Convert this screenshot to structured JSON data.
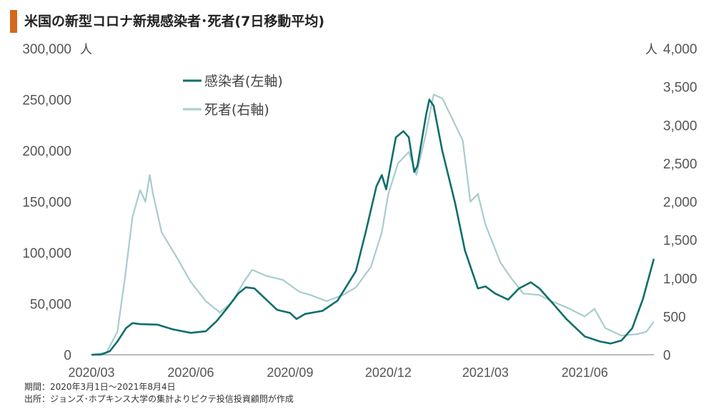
{
  "title": "米国の新型コロナ新規感染者･死者(7日移動平均)",
  "colors": {
    "accent": "#d2691e",
    "cases": "#0f6e6b",
    "deaths": "#a9cccc",
    "axis": "#777777"
  },
  "notes": {
    "period": "期間：2020年3月1日～2021年8月4日",
    "source": "出所：ジョンズ･ホプキンス大学の集計よりピクテ投信投資顧問が作成"
  },
  "chart_data": {
    "type": "line",
    "x_ticks": [
      "2020/03",
      "2020/06",
      "2020/09",
      "2020/12",
      "2021/03",
      "2021/06"
    ],
    "x_range": [
      "2020-03-01",
      "2021-08-04"
    ],
    "y_left": {
      "unit": "人",
      "range": [
        0,
        300000
      ],
      "ticks": [
        0,
        50000,
        100000,
        150000,
        200000,
        250000,
        300000
      ],
      "tick_labels": [
        "0",
        "50,000",
        "100,000",
        "150,000",
        "200,000",
        "250,000",
        "300,000"
      ]
    },
    "y_right": {
      "unit": "人",
      "range": [
        0,
        4000
      ],
      "ticks": [
        0,
        500,
        1000,
        1500,
        2000,
        2500,
        3000,
        3500,
        4000
      ],
      "tick_labels": [
        "0",
        "500",
        "1,000",
        "1,500",
        "2,000",
        "2,500",
        "3,000",
        "3,500",
        "4,000"
      ]
    },
    "legend_position": "top-center",
    "grid": false,
    "series": [
      {
        "name": "感染者(左軸)",
        "axis": "left",
        "points": [
          [
            "2020-03-01",
            0
          ],
          [
            "2020-03-10",
            200
          ],
          [
            "2020-03-18",
            3500
          ],
          [
            "2020-03-25",
            13000
          ],
          [
            "2020-04-02",
            26000
          ],
          [
            "2020-04-08",
            31000
          ],
          [
            "2020-04-15",
            30000
          ],
          [
            "2020-05-01",
            29500
          ],
          [
            "2020-05-15",
            25000
          ],
          [
            "2020-06-01",
            21500
          ],
          [
            "2020-06-15",
            23000
          ],
          [
            "2020-06-25",
            33000
          ],
          [
            "2020-07-05",
            46000
          ],
          [
            "2020-07-15",
            60000
          ],
          [
            "2020-07-22",
            66000
          ],
          [
            "2020-07-30",
            65000
          ],
          [
            "2020-08-10",
            54000
          ],
          [
            "2020-08-20",
            44000
          ],
          [
            "2020-09-01",
            41000
          ],
          [
            "2020-09-07",
            35000
          ],
          [
            "2020-09-15",
            40000
          ],
          [
            "2020-10-01",
            43000
          ],
          [
            "2020-10-15",
            53000
          ],
          [
            "2020-11-01",
            82000
          ],
          [
            "2020-11-10",
            120000
          ],
          [
            "2020-11-20",
            165000
          ],
          [
            "2020-11-25",
            176000
          ],
          [
            "2020-11-29",
            162000
          ],
          [
            "2020-12-08",
            213000
          ],
          [
            "2020-12-15",
            219000
          ],
          [
            "2020-12-20",
            213000
          ],
          [
            "2020-12-25",
            179000
          ],
          [
            "2020-12-28",
            185000
          ],
          [
            "2021-01-05",
            235000
          ],
          [
            "2021-01-08",
            250000
          ],
          [
            "2021-01-12",
            244000
          ],
          [
            "2021-01-20",
            200000
          ],
          [
            "2021-02-01",
            148000
          ],
          [
            "2021-02-10",
            102000
          ],
          [
            "2021-02-22",
            65000
          ],
          [
            "2021-03-01",
            67000
          ],
          [
            "2021-03-10",
            60000
          ],
          [
            "2021-03-22",
            54000
          ],
          [
            "2021-04-01",
            65000
          ],
          [
            "2021-04-12",
            71000
          ],
          [
            "2021-04-20",
            65000
          ],
          [
            "2021-05-01",
            52000
          ],
          [
            "2021-05-15",
            35000
          ],
          [
            "2021-06-01",
            18000
          ],
          [
            "2021-06-15",
            13000
          ],
          [
            "2021-06-25",
            11000
          ],
          [
            "2021-07-05",
            14000
          ],
          [
            "2021-07-15",
            26000
          ],
          [
            "2021-07-25",
            55000
          ],
          [
            "2021-08-04",
            94000
          ]
        ]
      },
      {
        "name": "死者(右軸)",
        "axis": "right",
        "points": [
          [
            "2020-03-01",
            0
          ],
          [
            "2020-03-15",
            30
          ],
          [
            "2020-03-25",
            300
          ],
          [
            "2020-04-01",
            1000
          ],
          [
            "2020-04-08",
            1800
          ],
          [
            "2020-04-15",
            2150
          ],
          [
            "2020-04-20",
            2000
          ],
          [
            "2020-04-24",
            2350
          ],
          [
            "2020-04-27",
            2100
          ],
          [
            "2020-05-05",
            1600
          ],
          [
            "2020-05-20",
            1250
          ],
          [
            "2020-06-01",
            950
          ],
          [
            "2020-06-15",
            700
          ],
          [
            "2020-06-28",
            550
          ],
          [
            "2020-07-10",
            700
          ],
          [
            "2020-07-20",
            950
          ],
          [
            "2020-07-28",
            1110
          ],
          [
            "2020-08-10",
            1030
          ],
          [
            "2020-08-25",
            980
          ],
          [
            "2020-09-10",
            820
          ],
          [
            "2020-09-20",
            780
          ],
          [
            "2020-10-05",
            700
          ],
          [
            "2020-10-20",
            780
          ],
          [
            "2020-11-01",
            880
          ],
          [
            "2020-11-15",
            1150
          ],
          [
            "2020-11-25",
            1600
          ],
          [
            "2020-12-01",
            2100
          ],
          [
            "2020-12-10",
            2500
          ],
          [
            "2020-12-20",
            2650
          ],
          [
            "2020-12-27",
            2350
          ],
          [
            "2021-01-05",
            2900
          ],
          [
            "2021-01-12",
            3400
          ],
          [
            "2021-01-20",
            3350
          ],
          [
            "2021-01-27",
            3150
          ],
          [
            "2021-02-08",
            2800
          ],
          [
            "2021-02-15",
            2000
          ],
          [
            "2021-02-22",
            2100
          ],
          [
            "2021-03-01",
            1700
          ],
          [
            "2021-03-15",
            1200
          ],
          [
            "2021-03-25",
            1000
          ],
          [
            "2021-04-05",
            800
          ],
          [
            "2021-04-20",
            780
          ],
          [
            "2021-05-01",
            700
          ],
          [
            "2021-05-15",
            620
          ],
          [
            "2021-06-01",
            500
          ],
          [
            "2021-06-10",
            600
          ],
          [
            "2021-06-20",
            350
          ],
          [
            "2021-07-05",
            250
          ],
          [
            "2021-07-20",
            270
          ],
          [
            "2021-07-28",
            300
          ],
          [
            "2021-08-04",
            430
          ]
        ]
      }
    ]
  }
}
